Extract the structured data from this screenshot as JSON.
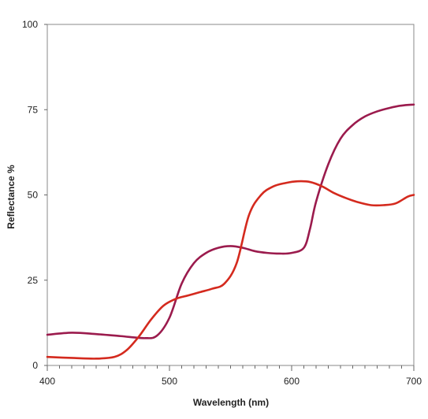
{
  "chart_data": {
    "type": "line",
    "title": "",
    "xlabel": "Wavelength (nm)",
    "ylabel": "Reflectance %",
    "xlim": [
      400,
      700
    ],
    "ylim": [
      0,
      100
    ],
    "grid": false,
    "x_ticks": [
      400,
      500,
      600,
      700
    ],
    "x_tick_labels": [
      "400",
      "500",
      "600",
      "700"
    ],
    "x_minor_ticks": [
      400,
      410,
      420,
      430,
      440,
      450,
      460,
      470,
      480,
      490,
      500,
      510,
      520,
      530,
      540,
      550,
      560,
      570,
      580,
      590,
      600,
      610,
      620,
      630,
      640,
      650,
      660,
      670,
      680,
      690,
      700
    ],
    "y_ticks": [
      0,
      25,
      50,
      75,
      100
    ],
    "y_tick_labels": [
      "0",
      "25",
      "50",
      "75",
      "100"
    ],
    "series": [
      {
        "color": "#9b1b4d",
        "x": [
          400,
          420,
          440,
          460,
          480,
          490,
          500,
          510,
          520,
          530,
          540,
          550,
          560,
          570,
          580,
          590,
          600,
          610,
          615,
          620,
          630,
          640,
          650,
          660,
          670,
          680,
          690,
          700
        ],
        "y": [
          9,
          9.6,
          9.2,
          8.6,
          8,
          8.8,
          14,
          24,
          30,
          33,
          34.5,
          35,
          34.5,
          33.5,
          33,
          32.8,
          33,
          34.5,
          40,
          48,
          59,
          66.5,
          70.5,
          73,
          74.5,
          75.5,
          76.2,
          76.5
        ]
      },
      {
        "color": "#d42a1e",
        "x": [
          400,
          420,
          440,
          455,
          465,
          475,
          485,
          495,
          505,
          515,
          525,
          535,
          545,
          555,
          565,
          575,
          585,
          595,
          605,
          615,
          625,
          635,
          645,
          655,
          665,
          675,
          685,
          695,
          700
        ],
        "y": [
          2.5,
          2.2,
          2,
          2.5,
          4.5,
          8.5,
          13.5,
          17.5,
          19.5,
          20.5,
          21.5,
          22.5,
          24,
          30,
          44,
          50,
          52.5,
          53.5,
          54,
          53.8,
          52.5,
          50.5,
          49,
          47.8,
          47,
          47,
          47.5,
          49.5,
          50
        ]
      }
    ]
  }
}
